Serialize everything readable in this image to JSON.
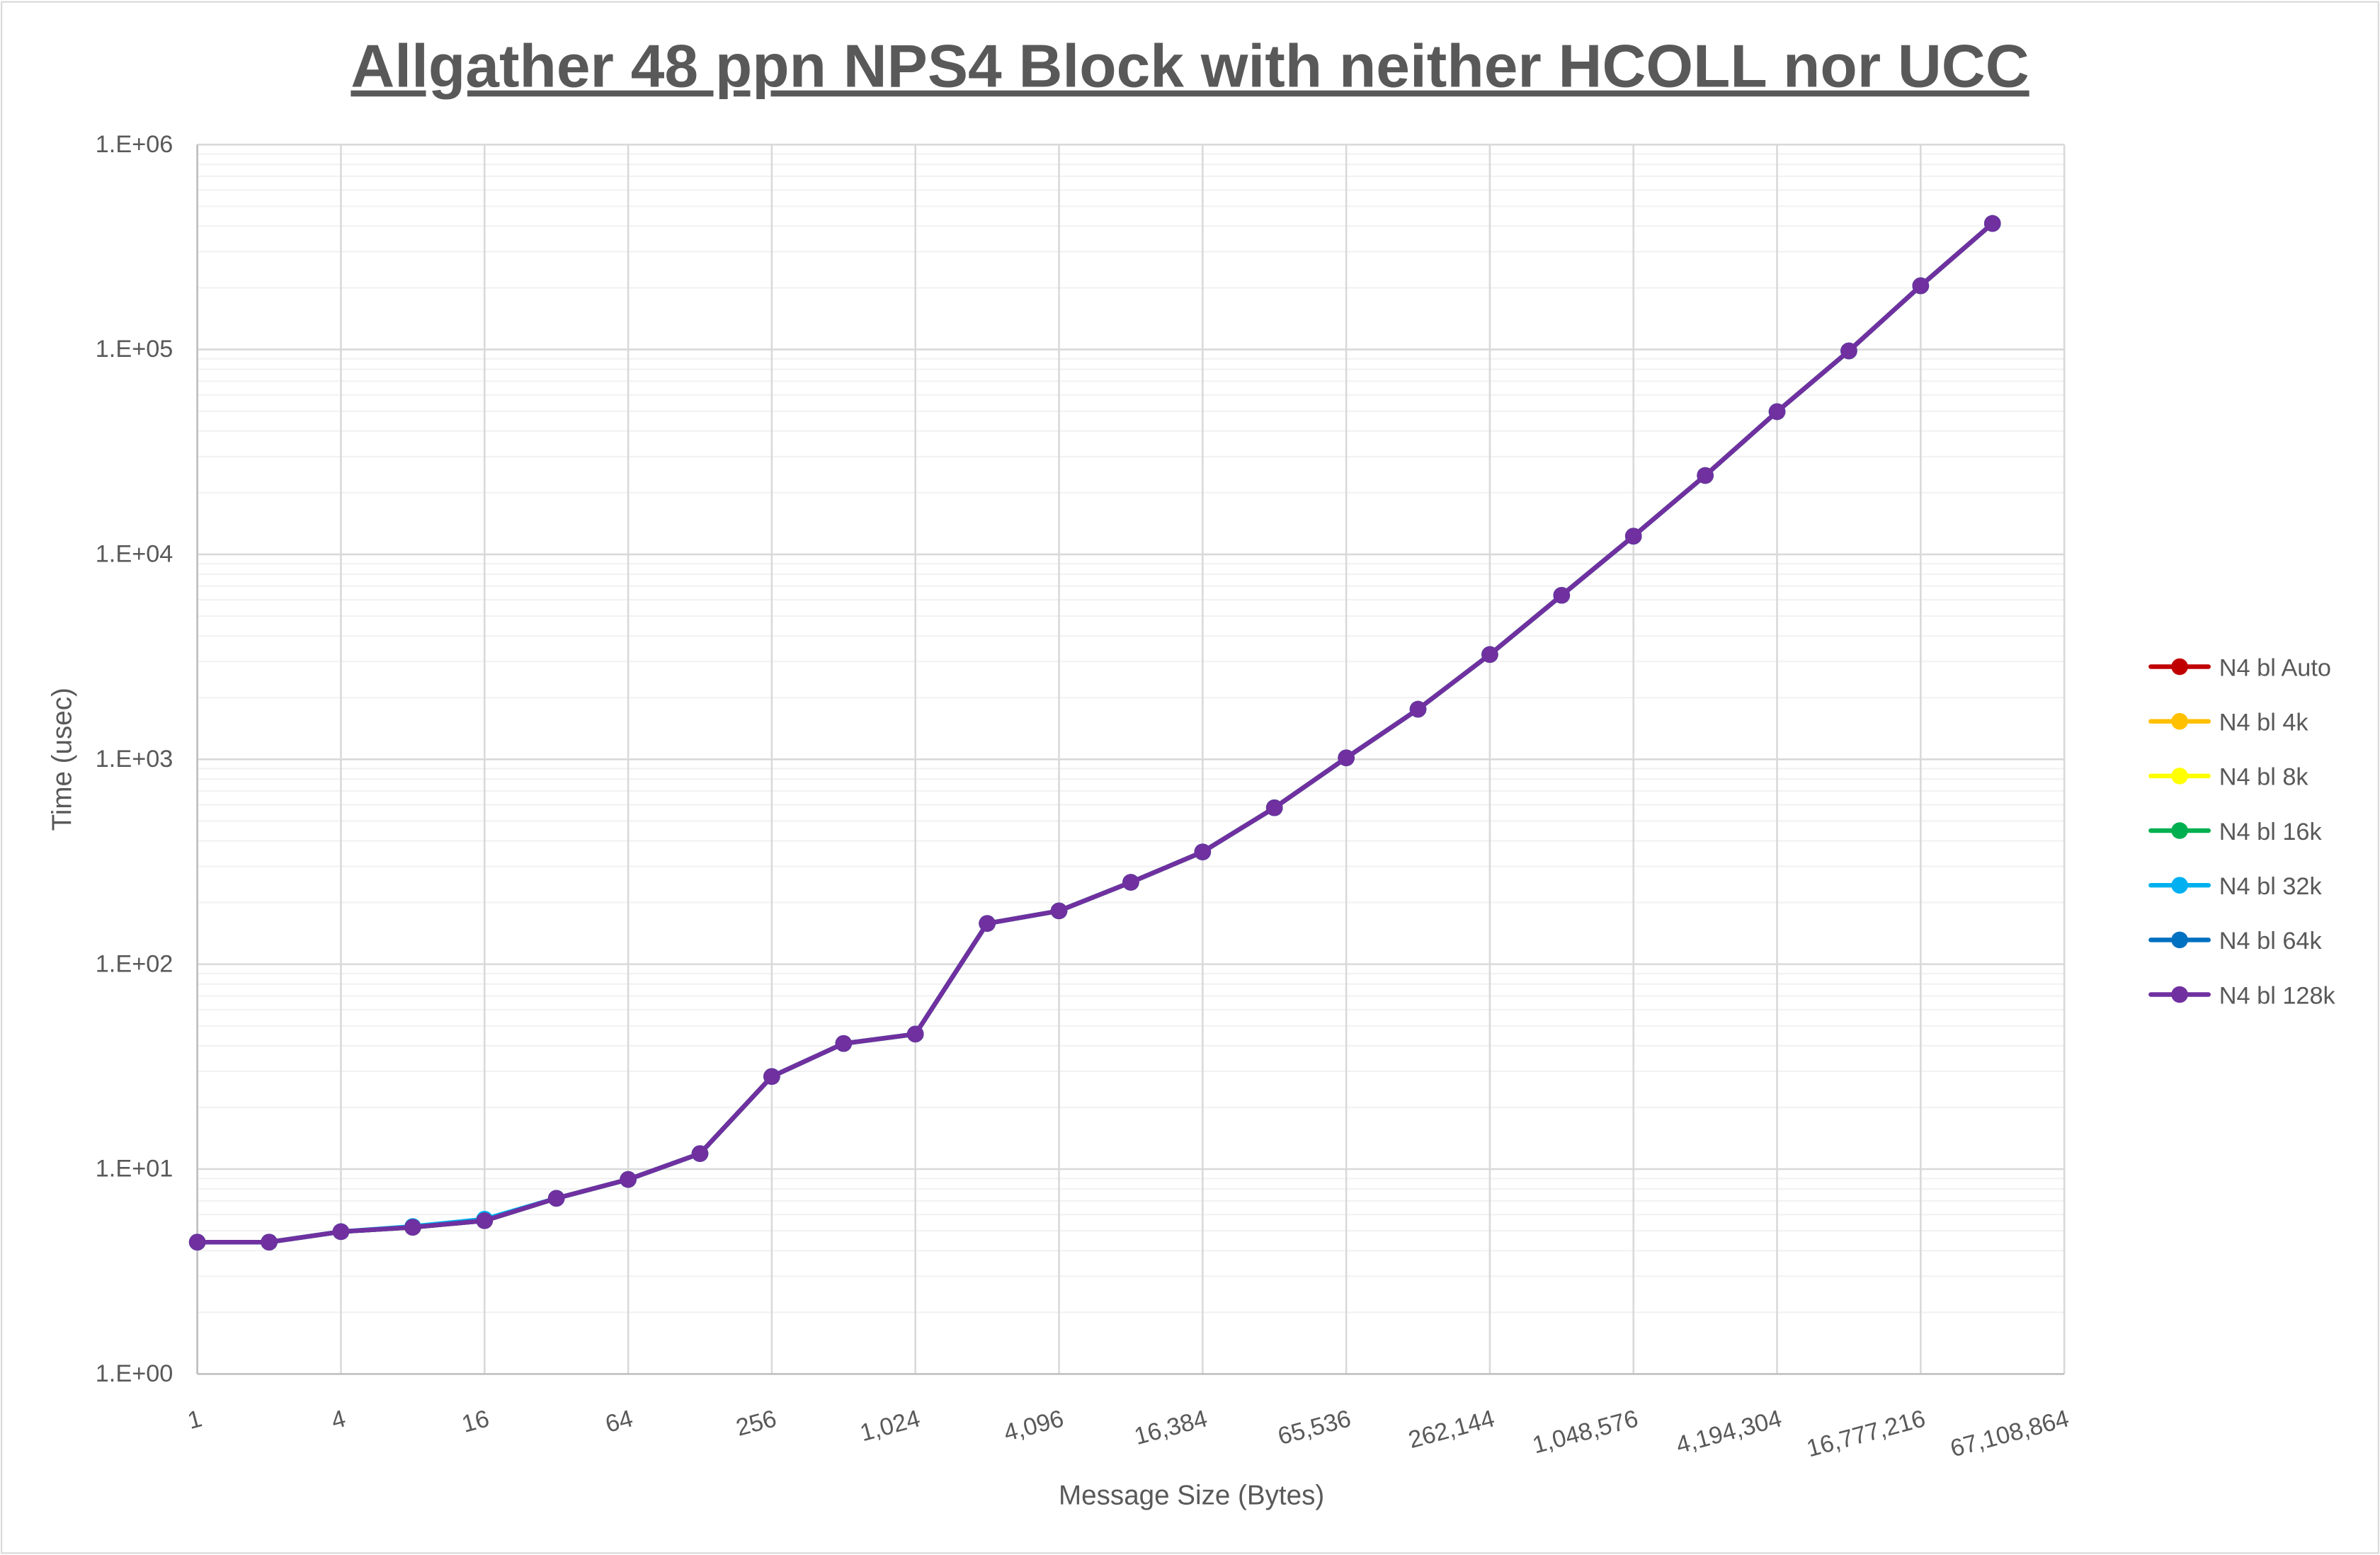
{
  "chart_data": {
    "type": "line",
    "title": "Allgather 48 ppn NPS4 Block with neither HCOLL nor UCC",
    "xlabel": "Message Size (Bytes)",
    "ylabel": "Time (usec)",
    "x_scale": "log2",
    "y_scale": "log10",
    "xlim": [
      1,
      67108864
    ],
    "ylim": [
      1,
      1000000
    ],
    "grid": true,
    "legend_position": "right",
    "x_tick_labels": [
      "1",
      "4",
      "16",
      "64",
      "256",
      "1,024",
      "4,096",
      "16,384",
      "65,536",
      "262,144",
      "1,048,576",
      "4,194,304",
      "16,777,216",
      "67,108,864"
    ],
    "y_tick_labels": [
      "1.E+00",
      "1.E+01",
      "1.E+02",
      "1.E+03",
      "1.E+04",
      "1.E+05",
      "1.E+06"
    ],
    "x": [
      1,
      2,
      4,
      8,
      16,
      32,
      64,
      128,
      256,
      512,
      1024,
      2048,
      4096,
      8192,
      16384,
      32768,
      65536,
      131072,
      262144,
      524288,
      1048576,
      2097152,
      4194304,
      8388608,
      16777216,
      33554432
    ],
    "series": [
      {
        "name": "N4 bl Auto",
        "color": "#C00000",
        "values": [
          4.4,
          4.4,
          4.95,
          5.2,
          5.6,
          7.2,
          8.9,
          11.9,
          28.3,
          41,
          45.6,
          158,
          182,
          251,
          353,
          580,
          1016,
          1755,
          3245,
          6310,
          12270,
          24270,
          49700,
          98400,
          204600,
          412000
        ]
      },
      {
        "name": "N4 bl 4k",
        "color": "#FFC000",
        "values": [
          4.4,
          4.4,
          4.95,
          5.2,
          5.6,
          7.2,
          8.9,
          11.9,
          28.3,
          41,
          45.6,
          158,
          182,
          251,
          353,
          580,
          1016,
          1755,
          3245,
          6310,
          12270,
          24270,
          49700,
          98400,
          204600,
          412000
        ]
      },
      {
        "name": "N4 bl 8k",
        "color": "#FFFF00",
        "values": [
          4.4,
          4.4,
          4.95,
          5.2,
          5.6,
          7.2,
          8.9,
          11.9,
          28.3,
          41,
          45.6,
          158,
          182,
          251,
          353,
          580,
          1016,
          1755,
          3245,
          6310,
          12270,
          24270,
          49700,
          98400,
          204600,
          412000
        ]
      },
      {
        "name": "N4 bl 16k",
        "color": "#00B050",
        "values": [
          4.4,
          4.4,
          4.95,
          5.2,
          5.6,
          7.2,
          8.9,
          11.9,
          28.3,
          41,
          45.6,
          158,
          182,
          251,
          353,
          580,
          1016,
          1755,
          3245,
          6310,
          12270,
          24270,
          49700,
          98400,
          204600,
          412000
        ]
      },
      {
        "name": "N4 bl 32k",
        "color": "#00B0F0",
        "values": [
          4.4,
          4.4,
          4.95,
          5.25,
          5.7,
          7.2,
          8.9,
          11.9,
          28.3,
          41,
          45.6,
          158,
          182,
          251,
          353,
          580,
          1016,
          1755,
          3245,
          6310,
          12270,
          24270,
          49700,
          98400,
          204600,
          412000
        ]
      },
      {
        "name": "N4 bl 64k",
        "color": "#0070C0",
        "values": [
          4.4,
          4.4,
          4.95,
          5.2,
          5.6,
          7.2,
          8.9,
          11.9,
          28.3,
          41,
          45.6,
          158,
          182,
          251,
          353,
          580,
          1016,
          1755,
          3245,
          6310,
          12270,
          24270,
          49700,
          98400,
          204600,
          412000
        ]
      },
      {
        "name": "N4 bl 128k",
        "color": "#7030A0",
        "values": [
          4.4,
          4.4,
          4.95,
          5.2,
          5.6,
          7.2,
          8.9,
          11.9,
          28.3,
          41,
          45.6,
          158,
          182,
          251,
          353,
          580,
          1016,
          1755,
          3245,
          6310,
          12270,
          24270,
          49700,
          98400,
          204600,
          412000
        ]
      }
    ]
  }
}
